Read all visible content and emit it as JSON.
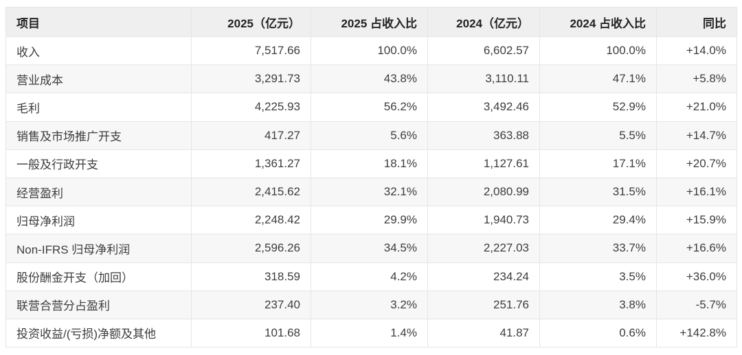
{
  "table": {
    "columns": [
      {
        "key": "item",
        "label": "项目",
        "align": "left"
      },
      {
        "key": "y2025",
        "label": "2025（亿元）",
        "align": "right"
      },
      {
        "key": "p2025",
        "label": "2025 占收入比",
        "align": "right"
      },
      {
        "key": "y2024",
        "label": "2024（亿元）",
        "align": "right"
      },
      {
        "key": "p2024",
        "label": "2024 占收入比",
        "align": "right"
      },
      {
        "key": "yoy",
        "label": "同比",
        "align": "right"
      }
    ],
    "rows": [
      [
        "收入",
        "7,517.66",
        "100.0%",
        "6,602.57",
        "100.0%",
        "+14.0%"
      ],
      [
        "营业成本",
        "3,291.73",
        "43.8%",
        "3,110.11",
        "47.1%",
        "+5.8%"
      ],
      [
        "毛利",
        "4,225.93",
        "56.2%",
        "3,492.46",
        "52.9%",
        "+21.0%"
      ],
      [
        "销售及市场推广开支",
        "417.27",
        "5.6%",
        "363.88",
        "5.5%",
        "+14.7%"
      ],
      [
        "一般及行政开支",
        "1,361.27",
        "18.1%",
        "1,127.61",
        "17.1%",
        "+20.7%"
      ],
      [
        "经营盈利",
        "2,415.62",
        "32.1%",
        "2,080.99",
        "31.5%",
        "+16.1%"
      ],
      [
        "归母净利润",
        "2,248.42",
        "29.9%",
        "1,940.73",
        "29.4%",
        "+15.9%"
      ],
      [
        "Non-IFRS 归母净利润",
        "2,596.26",
        "34.5%",
        "2,227.03",
        "33.7%",
        "+16.6%"
      ],
      [
        "股份酬金开支（加回）",
        "318.59",
        "4.2%",
        "234.24",
        "3.5%",
        "+36.0%"
      ],
      [
        "联营合营分占盈利",
        "237.40",
        "3.2%",
        "251.76",
        "3.8%",
        "-5.7%"
      ],
      [
        "投资收益/(亏损)净额及其他",
        "101.68",
        "1.4%",
        "41.87",
        "0.6%",
        "+142.8%"
      ]
    ]
  },
  "chart_data": {
    "type": "table",
    "title": "",
    "columns": [
      "项目",
      "2025（亿元）",
      "2025 占收入比",
      "2024（亿元）",
      "2024 占收入比",
      "同比"
    ],
    "rows": [
      [
        "收入",
        7517.66,
        "100.0%",
        6602.57,
        "100.0%",
        "+14.0%"
      ],
      [
        "营业成本",
        3291.73,
        "43.8%",
        3110.11,
        "47.1%",
        "+5.8%"
      ],
      [
        "毛利",
        4225.93,
        "56.2%",
        3492.46,
        "52.9%",
        "+21.0%"
      ],
      [
        "销售及市场推广开支",
        417.27,
        "5.6%",
        363.88,
        "5.5%",
        "+14.7%"
      ],
      [
        "一般及行政开支",
        1361.27,
        "18.1%",
        1127.61,
        "17.1%",
        "+20.7%"
      ],
      [
        "经营盈利",
        2415.62,
        "32.1%",
        2080.99,
        "31.5%",
        "+16.1%"
      ],
      [
        "归母净利润",
        2248.42,
        "29.9%",
        1940.73,
        "29.4%",
        "+15.9%"
      ],
      [
        "Non-IFRS 归母净利润",
        2596.26,
        "34.5%",
        2227.03,
        "33.7%",
        "+16.6%"
      ],
      [
        "股份酬金开支（加回）",
        318.59,
        "4.2%",
        234.24,
        "3.5%",
        "+36.0%"
      ],
      [
        "联营合营分占盈利",
        237.4,
        "3.2%",
        251.76,
        "3.8%",
        "-5.7%"
      ],
      [
        "投资收益/(亏损)净额及其他",
        101.68,
        "1.4%",
        41.87,
        "0.6%",
        "+142.8%"
      ]
    ]
  },
  "colors": {
    "header_background": "#efefef",
    "stripe_background": "#f7f7f7",
    "row_background": "#ffffff",
    "border": "#e5e5e5",
    "text": "#3d3d3d",
    "header_text": "#222222"
  }
}
